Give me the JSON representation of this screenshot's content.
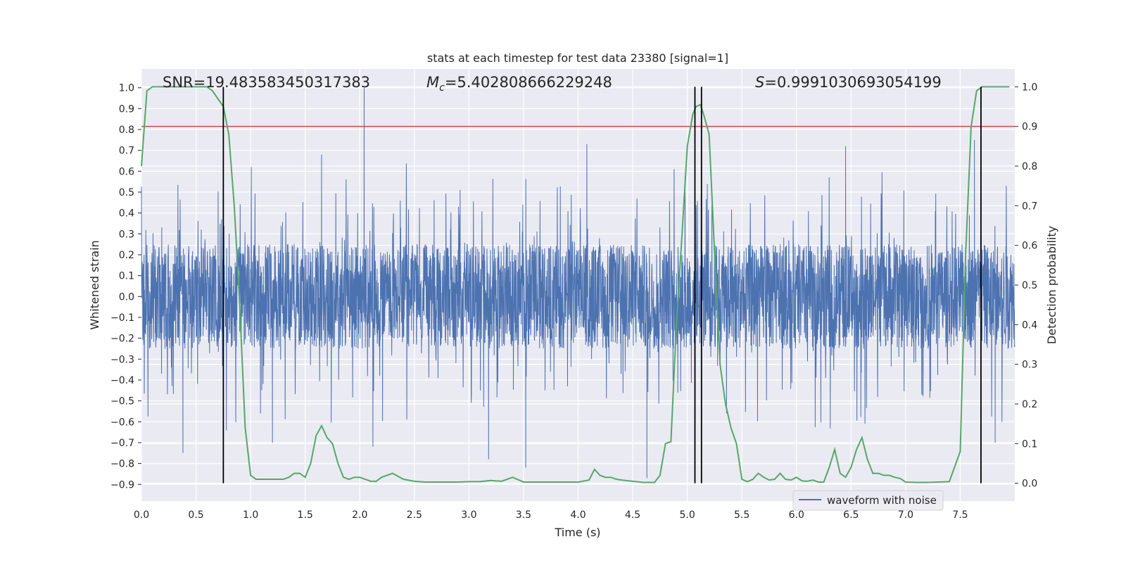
{
  "chart_data": {
    "type": "line",
    "title": "stats at each timestep for test data 23380 [signal=1]",
    "xlabel": "Time (s)",
    "ylabel_left": "Whitened strain",
    "ylabel_right": "Detection probability",
    "xlim": [
      0.0,
      8.0
    ],
    "ylim_left": [
      -0.98,
      1.09
    ],
    "ylim_right": [
      -0.045,
      1.045
    ],
    "x_ticks": [
      0.0,
      0.5,
      1.0,
      1.5,
      2.0,
      2.5,
      3.0,
      3.5,
      4.0,
      4.5,
      5.0,
      5.5,
      6.0,
      6.5,
      7.0,
      7.5
    ],
    "x_tick_labels": [
      "0.0",
      "0.5",
      "1.0",
      "1.5",
      "2.0",
      "2.5",
      "3.0",
      "3.5",
      "4.0",
      "4.5",
      "5.0",
      "5.5",
      "6.0",
      "6.5",
      "7.0",
      "7.5"
    ],
    "y_left_ticks": [
      1.0,
      0.9,
      0.8,
      0.7,
      0.6,
      0.5,
      0.4,
      0.3,
      0.2,
      0.1,
      0.0,
      -0.1,
      -0.2,
      -0.3,
      -0.4,
      -0.5,
      -0.6,
      -0.7,
      -0.8,
      -0.9
    ],
    "y_left_tick_labels": [
      "1.0",
      "0.9",
      "0.8",
      "0.7",
      "0.6",
      "0.5",
      "0.4",
      "0.3",
      "0.2",
      "0.1",
      "0.0",
      "−0.1",
      "−0.2",
      "−0.3",
      "−0.4",
      "−0.5",
      "−0.6",
      "−0.7",
      "−0.8",
      "−0.9"
    ],
    "y_right_ticks": [
      1.0,
      0.9,
      0.8,
      0.7,
      0.6,
      0.5,
      0.4,
      0.3,
      0.2,
      0.1,
      0.0
    ],
    "y_right_tick_labels": [
      "1.0",
      "0.9",
      "0.8",
      "0.7",
      "0.6",
      "0.5",
      "0.4",
      "0.3",
      "0.2",
      "0.1",
      "0.0"
    ],
    "grid": true,
    "legend_placement": "lower-right",
    "annotations": {
      "snr": "SNR=19.483583450317383",
      "mc_symbol": "M",
      "mc_sub": "c",
      "mc_value": "=5.402808666229248",
      "s_symbol": "S",
      "s_value": "=0.9991030693054199"
    },
    "series": [
      {
        "name": "waveform with noise",
        "axis": "left",
        "color": "#4c72b0",
        "envelope": {
          "core_amplitude": 0.25,
          "typical_positive_peak": 0.45,
          "typical_negative_peak": -0.42,
          "max": 1.0,
          "min": -0.87,
          "notable_spikes": [
            {
              "x": 2.04,
              "y": 1.0
            },
            {
              "x": 4.63,
              "y": -0.87
            },
            {
              "x": 3.52,
              "y": -0.82
            },
            {
              "x": 0.38,
              "y": -0.75
            },
            {
              "x": 3.18,
              "y": -0.78
            },
            {
              "x": 4.08,
              "y": 0.73
            },
            {
              "x": 7.63,
              "y": 0.75
            },
            {
              "x": 6.45,
              "y": 0.72
            },
            {
              "x": 1.65,
              "y": 0.68
            },
            {
              "x": 0.75,
              "y": -0.78
            },
            {
              "x": 1.2,
              "y": -0.7
            },
            {
              "x": 2.12,
              "y": -0.72
            },
            {
              "x": 7.82,
              "y": -0.7
            }
          ]
        }
      },
      {
        "name": "",
        "axis": "right",
        "color": "#55a868",
        "x": [
          0.0,
          0.05,
          0.1,
          0.15,
          0.2,
          0.3,
          0.4,
          0.5,
          0.6,
          0.65,
          0.7,
          0.75,
          0.8,
          0.85,
          0.9,
          0.95,
          1.0,
          1.05,
          1.1,
          1.2,
          1.3,
          1.35,
          1.4,
          1.45,
          1.5,
          1.55,
          1.6,
          1.65,
          1.7,
          1.75,
          1.8,
          1.85,
          1.9,
          1.95,
          2.0,
          2.1,
          2.15,
          2.2,
          2.3,
          2.4,
          2.5,
          2.6,
          2.7,
          2.8,
          2.9,
          3.0,
          3.1,
          3.2,
          3.3,
          3.4,
          3.5,
          3.6,
          3.7,
          3.8,
          3.9,
          4.0,
          4.1,
          4.15,
          4.2,
          4.25,
          4.3,
          4.35,
          4.4,
          4.5,
          4.6,
          4.7,
          4.75,
          4.8,
          4.85,
          4.9,
          4.95,
          5.0,
          5.05,
          5.08,
          5.12,
          5.15,
          5.2,
          5.25,
          5.3,
          5.35,
          5.4,
          5.45,
          5.5,
          5.55,
          5.6,
          5.65,
          5.7,
          5.75,
          5.8,
          5.85,
          5.9,
          5.95,
          6.0,
          6.05,
          6.1,
          6.15,
          6.2,
          6.25,
          6.3,
          6.35,
          6.4,
          6.45,
          6.5,
          6.55,
          6.6,
          6.65,
          6.7,
          6.75,
          6.8,
          6.85,
          6.9,
          6.95,
          7.0,
          7.1,
          7.2,
          7.3,
          7.4,
          7.5,
          7.55,
          7.6,
          7.65,
          7.7,
          7.75,
          7.8,
          7.85,
          7.9,
          7.95
        ],
        "y": [
          0.8,
          0.99,
          1.0,
          1.0,
          1.0,
          1.0,
          1.0,
          1.0,
          1.0,
          0.99,
          0.97,
          0.95,
          0.88,
          0.7,
          0.45,
          0.14,
          0.02,
          0.01,
          0.01,
          0.01,
          0.01,
          0.015,
          0.025,
          0.025,
          0.015,
          0.05,
          0.12,
          0.145,
          0.115,
          0.1,
          0.05,
          0.015,
          0.01,
          0.015,
          0.015,
          0.005,
          0.005,
          0.015,
          0.025,
          0.01,
          0.005,
          0.003,
          0.003,
          0.003,
          0.003,
          0.004,
          0.004,
          0.007,
          0.005,
          0.015,
          0.003,
          0.003,
          0.003,
          0.003,
          0.003,
          0.003,
          0.008,
          0.035,
          0.02,
          0.015,
          0.015,
          0.01,
          0.008,
          0.005,
          0.002,
          0.002,
          0.02,
          0.1,
          0.105,
          0.4,
          0.62,
          0.85,
          0.93,
          0.95,
          0.955,
          0.93,
          0.88,
          0.58,
          0.3,
          0.2,
          0.14,
          0.1,
          0.01,
          0.004,
          0.01,
          0.025,
          0.015,
          0.008,
          0.01,
          0.025,
          0.01,
          0.008,
          0.015,
          0.006,
          0.005,
          0.008,
          0.003,
          0.003,
          0.04,
          0.085,
          0.025,
          0.015,
          0.04,
          0.085,
          0.115,
          0.06,
          0.025,
          0.025,
          0.02,
          0.02,
          0.015,
          0.012,
          0.003,
          0.002,
          0.002,
          0.003,
          0.004,
          0.08,
          0.58,
          0.9,
          0.99,
          1.0,
          1.0,
          1.0,
          1.0,
          1.0,
          1.0
        ]
      }
    ],
    "threshold_line": {
      "axis": "right",
      "y": 0.9,
      "color": "#c44e52"
    },
    "vertical_lines": {
      "color": "#000000",
      "x": [
        0.75,
        5.07,
        5.13,
        7.69
      ],
      "ymin_right": 0.0,
      "ymax_right": 1.0
    }
  }
}
